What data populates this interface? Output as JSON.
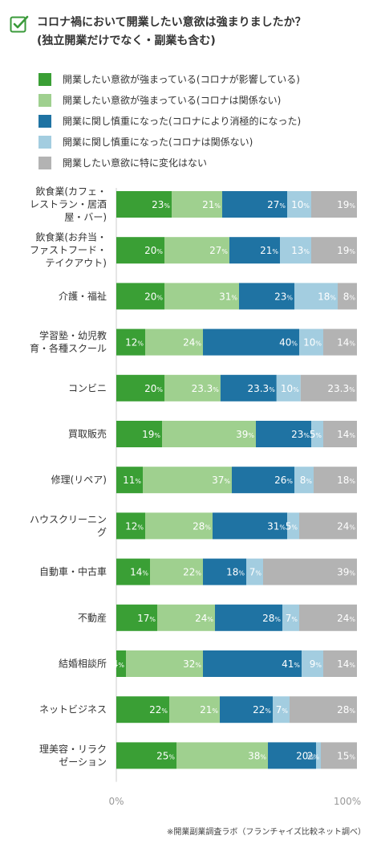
{
  "title": {
    "line1": "コロナ禍において開業したい意欲は強まりましたか？",
    "line2": "(独立開業だけでなく・副業も含む)"
  },
  "icon": "checkbox-check-icon",
  "colors": {
    "accent": "#3a9a3a"
  },
  "legend": [
    {
      "label": "開業したい意欲が強まっている(コロナが影響している)",
      "color": "#3a9f35"
    },
    {
      "label": "開業したい意欲が強まっている(コロナは関係ない)",
      "color": "#9fd08f"
    },
    {
      "label": "開業に関し慎重になった(コロナにより消極的になった)",
      "color": "#1f73a3"
    },
    {
      "label": "開業に関し慎重になった(コロナは関係ない)",
      "color": "#a3cde0"
    },
    {
      "label": "開業したい意欲に特に変化はない",
      "color": "#b3b3b3"
    }
  ],
  "source": "※開業副業調査ラボ（フランチャイズ比較ネット調べ）",
  "chart_data": {
    "type": "bar",
    "orientation": "horizontal",
    "stacked": true,
    "unit_suffix": "%",
    "categories": [
      [
        "飲食業(カフェ・",
        "レストラン・居酒",
        "屋・バー)"
      ],
      [
        "飲食業(お弁当・",
        "ファストフード・",
        "テイクアウト)"
      ],
      [
        "介護・福祉"
      ],
      [
        "学習塾・幼児教",
        "育・各種スクール"
      ],
      [
        "コンビニ"
      ],
      [
        "買取販売"
      ],
      [
        "修理(リペア)"
      ],
      [
        "ハウスクリーニン",
        "グ"
      ],
      [
        "自動車・中古車"
      ],
      [
        "不動産"
      ],
      [
        "結婚相談所"
      ],
      [
        "ネットビジネス"
      ],
      [
        "理美容・リラク",
        "ゼーション"
      ]
    ],
    "series": [
      {
        "name": "開業したい意欲が強まっている(コロナが影響している)",
        "color": "#3a9f35",
        "values": [
          "23",
          "20",
          "20",
          "12",
          "20",
          "19",
          "11",
          "12",
          "14",
          "17",
          "4",
          "22",
          "25"
        ]
      },
      {
        "name": "開業したい意欲が強まっている(コロナは関係ない)",
        "color": "#9fd08f",
        "values": [
          "21",
          "27",
          "31",
          "24",
          "23.3",
          "39",
          "37",
          "28",
          "22",
          "24",
          "32",
          "21",
          "38"
        ]
      },
      {
        "name": "開業に関し慎重になった(コロナにより消極的になった)",
        "color": "#1f73a3",
        "values": [
          "27",
          "21",
          "23",
          "40",
          "23.3",
          "23",
          "26",
          "31",
          "18",
          "28",
          "41",
          "22",
          "20"
        ]
      },
      {
        "name": "開業に関し慎重になった(コロナは関係ない)",
        "color": "#a3cde0",
        "values": [
          "10",
          "13",
          "18",
          "10",
          "10",
          "5",
          "8",
          "5",
          "7",
          "7",
          "9",
          "7",
          "2"
        ]
      },
      {
        "name": "開業したい意欲に特に変化はない",
        "color": "#b3b3b3",
        "values": [
          "19",
          "19",
          "8",
          "14",
          "23.3",
          "14",
          "18",
          "24",
          "39",
          "24",
          "14",
          "28",
          "15"
        ]
      }
    ],
    "x_tick_labels": [
      "0%",
      "100%"
    ],
    "xlim": [
      0,
      100
    ],
    "grid": false
  }
}
